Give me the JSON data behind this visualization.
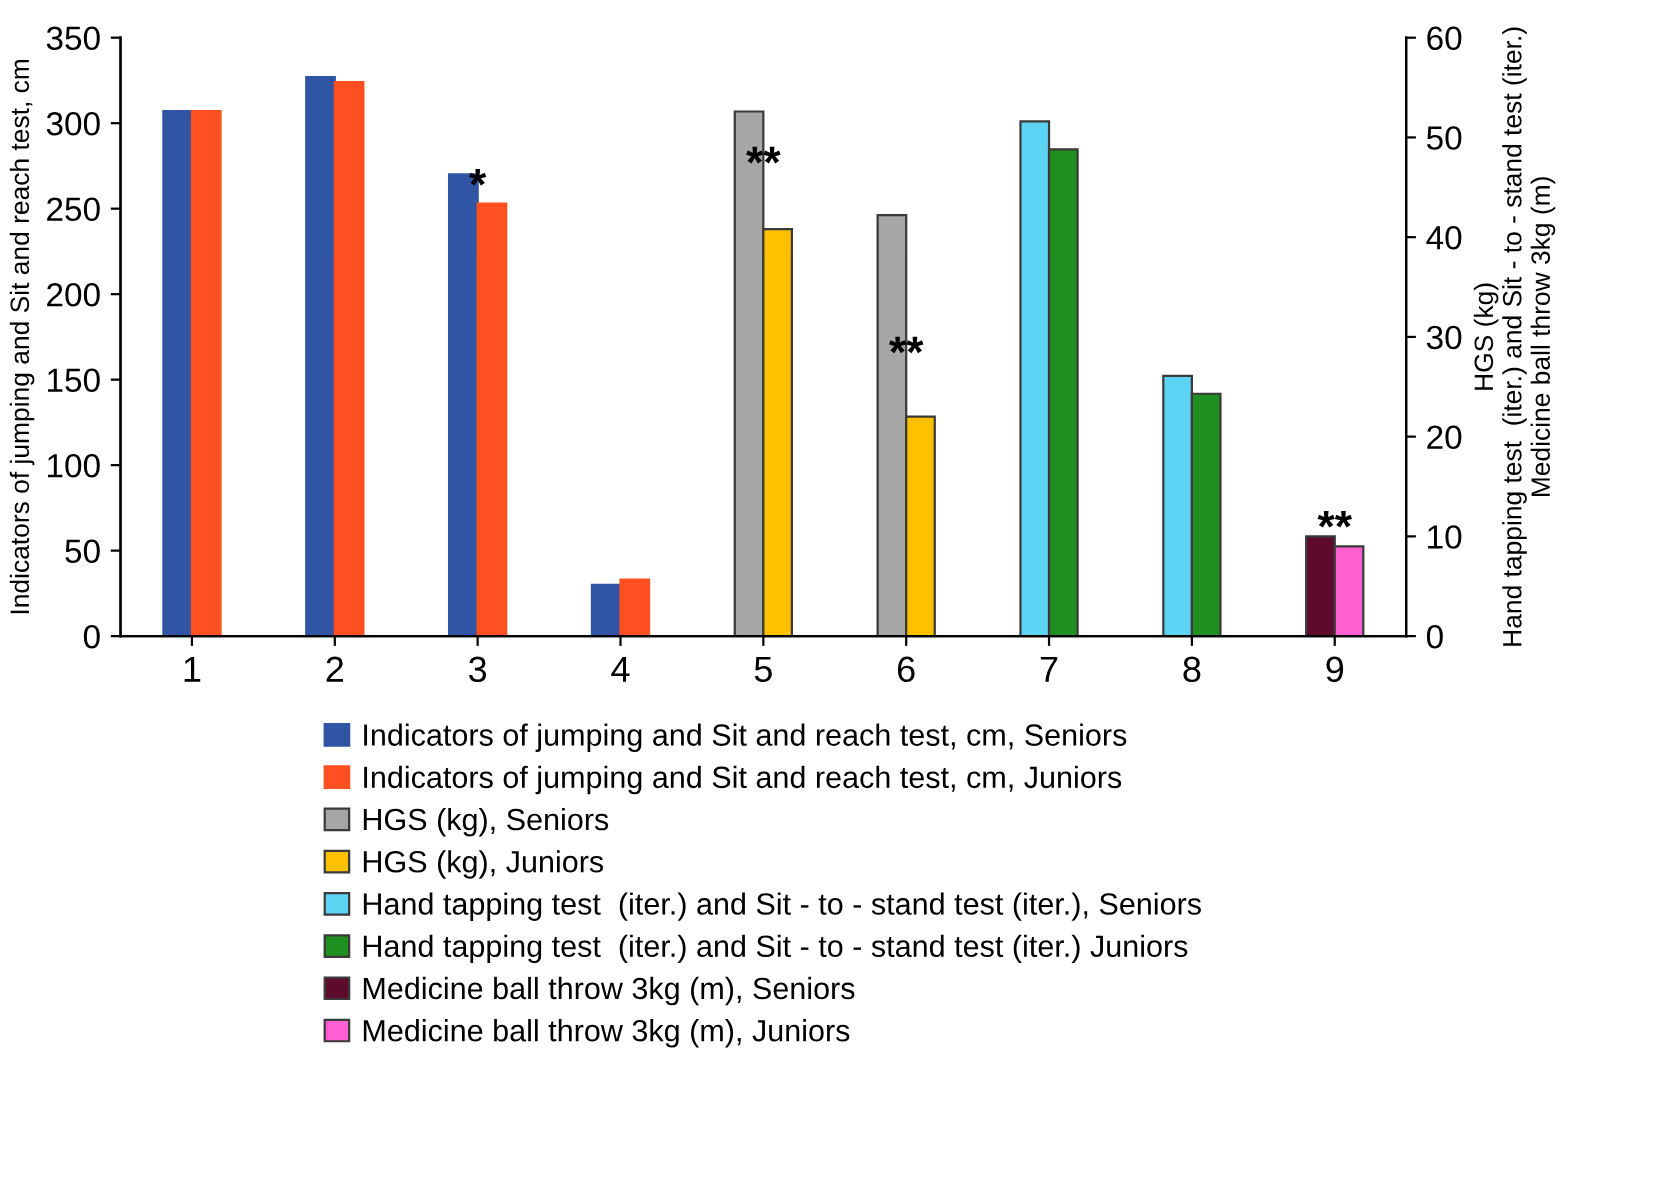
{
  "chart_data": {
    "type": "bar",
    "categories": [
      "1",
      "2",
      "3",
      "4",
      "5",
      "6",
      "7",
      "8",
      "9"
    ],
    "series": [
      {
        "name": "Indicators of jumping and Sit and reach test, cm, Seniors",
        "color": "#2f55a4",
        "values": [
          307,
          327,
          270,
          30,
          null,
          null,
          null,
          null,
          null
        ]
      },
      {
        "name": "Indicators of jumping and Sit and reach test, cm, Juniors",
        "color": "#ff5022",
        "values": [
          307,
          324,
          253,
          33,
          null,
          null,
          null,
          null,
          null
        ]
      },
      {
        "name": "HGS (kg), Seniors",
        "color": "#a6a6a6",
        "axis": "y2",
        "values": [
          null,
          null,
          null,
          null,
          52.6,
          42.2,
          null,
          null,
          null
        ]
      },
      {
        "name": "HGS (kg), Juniors",
        "color": "#ffc000",
        "axis": "y2",
        "values": [
          null,
          null,
          null,
          null,
          40.8,
          22,
          null,
          null,
          null
        ]
      },
      {
        "name": "Hand tapping test  (iter.) and Sit - to - stand test (iter.), Seniors",
        "color": "#5dd3f3",
        "axis": "y2",
        "values": [
          null,
          null,
          null,
          null,
          null,
          null,
          51.6,
          26.1,
          null
        ]
      },
      {
        "name": "Hand tapping test  (iter.) and Sit - to - stand test (iter.) Juniors",
        "color": "#1f8f1f",
        "axis": "y2",
        "values": [
          null,
          null,
          null,
          null,
          null,
          null,
          48.8,
          24.3,
          null
        ]
      },
      {
        "name": "Medicine ball throw 3kg (m), Seniors",
        "color": "#5e0a2c",
        "axis": "y2",
        "values": [
          null,
          null,
          null,
          null,
          null,
          null,
          null,
          null,
          10.0
        ]
      },
      {
        "name": "Medicine ball throw 3kg (m), Juniors",
        "color": "#ff5fd0",
        "axis": "y2",
        "values": [
          null,
          null,
          null,
          null,
          null,
          null,
          null,
          null,
          9.0
        ]
      }
    ],
    "ylabel": "Indicators of jumping and Sit and reach test, cm",
    "y2label": "HGS (kg)\nHand tapping test  (iter.) and Sit - to - stand test (iter.)\nMedicine ball throw 3kg (m)",
    "ylim": [
      0,
      350
    ],
    "yticks": [
      0,
      50,
      100,
      150,
      200,
      250,
      300,
      350
    ],
    "y2lim": [
      0,
      60
    ],
    "y2ticks": [
      0,
      10,
      20,
      30,
      40,
      50,
      60
    ],
    "annotations": [
      {
        "text": "*",
        "x": "3",
        "y": 262
      },
      {
        "text": "**",
        "x": "5",
        "y": 275
      },
      {
        "text": "**",
        "x": "6",
        "y": 164
      },
      {
        "text": "**",
        "x": "9",
        "y": 62
      }
    ],
    "legend": "bottom",
    "grid": false
  }
}
